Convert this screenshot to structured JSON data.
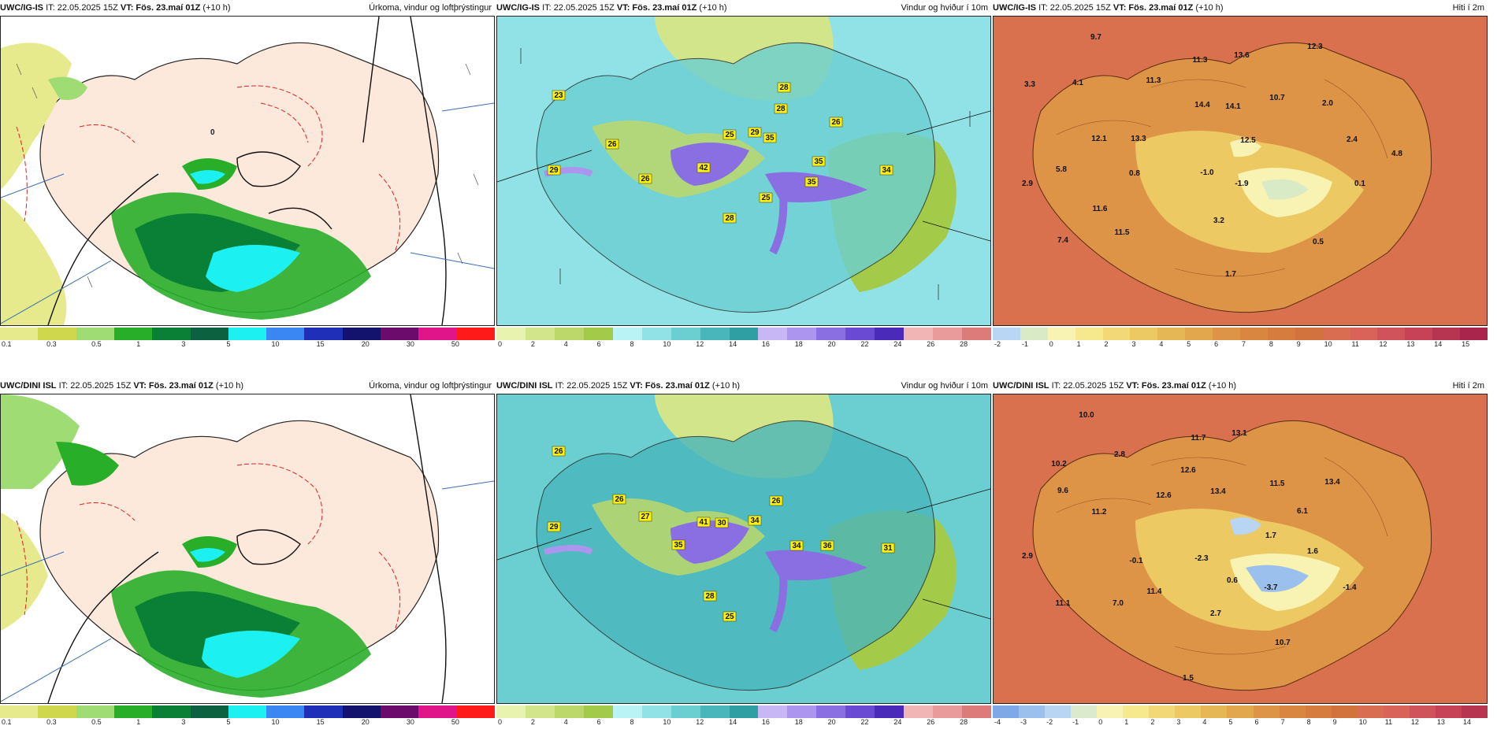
{
  "row1": {
    "panels": [
      {
        "model": "UWC/IG-IS",
        "it": "IT: 22.05.2025 15Z",
        "vt": "VT: Fös. 23.maí 01Z",
        "lead": "(+10 h)",
        "title": "Úrkoma, vindur og loftþrýstingur",
        "ticks": [
          "0.1",
          "0.3",
          "0.5",
          "1",
          "3",
          "5",
          "10",
          "15",
          "20",
          "30",
          "50"
        ],
        "colors": [
          "#d8e36a",
          "#bfd14a",
          "#a6e57a",
          "#2bb62e",
          "#0b8a30",
          "#0b6a3c",
          "#19f0f0",
          "#3b8cf0",
          "#2a3ed0",
          "#1e1ea0",
          "#7a0a7a",
          "#e01a8c",
          "#ff1a1a"
        ]
      },
      {
        "model": "UWC/IG-IS",
        "it": "IT: 22.05.2025 15Z",
        "vt": "VT: Fös. 23.maí 01Z",
        "lead": "(+10 h)",
        "title": "Vindur og hviður í 10m",
        "ticks": [
          "0",
          "2",
          "4",
          "6",
          "8",
          "10",
          "12",
          "14",
          "16",
          "18",
          "20",
          "22",
          "24",
          "26",
          "28"
        ],
        "labels": [
          "23",
          "28",
          "26",
          "29",
          "28",
          "26",
          "29",
          "42",
          "25",
          "35",
          "35",
          "35",
          "34",
          "26",
          "25",
          "28"
        ]
      },
      {
        "model": "UWC/IG-IS",
        "it": "IT: 22.05.2025 15Z",
        "vt": "VT: Fös. 23.maí 01Z",
        "lead": "(+10 h)",
        "title": "Hiti í 2m",
        "ticks": [
          "-2",
          "-1",
          "0",
          "1",
          "2",
          "3",
          "4",
          "5",
          "6",
          "7",
          "8",
          "9",
          "10",
          "11",
          "12",
          "13",
          "14",
          "15"
        ],
        "labels": [
          "9.7",
          "3.3",
          "4.1",
          "11.3",
          "11.3",
          "13.6",
          "12.3",
          "10.7",
          "2.0",
          "14.4",
          "14.1",
          "12.1",
          "13.3",
          "12.5",
          "2.4",
          "4.8",
          "5.8",
          "2.9",
          "0.8",
          "-1.0",
          "-1.9",
          "0.1",
          "11.6",
          "7.4",
          "11.5",
          "3.2",
          "0.5",
          "1.7"
        ]
      }
    ]
  },
  "row2": {
    "panels": [
      {
        "model": "UWC/DINI ISL",
        "it": "IT: 22.05.2025 15Z",
        "vt": "VT: Fös. 23.maí 01Z",
        "lead": "(+10 h)",
        "title": "Úrkoma, vindur og loftþrýstingur",
        "ticks": [
          "0.1",
          "0.3",
          "0.5",
          "1",
          "3",
          "5",
          "10",
          "15",
          "20",
          "30",
          "50"
        ]
      },
      {
        "model": "UWC/DINI ISL",
        "it": "IT: 22.05.2025 15Z",
        "vt": "VT: Fös. 23.maí 01Z",
        "lead": "(+10 h)",
        "title": "Vindur og hviður í 10m",
        "ticks": [
          "0",
          "2",
          "4",
          "6",
          "8",
          "10",
          "12",
          "14",
          "16",
          "18",
          "20",
          "22",
          "24",
          "26",
          "28"
        ],
        "labels": [
          "26",
          "26",
          "26",
          "29",
          "27",
          "41",
          "30",
          "34",
          "35",
          "34",
          "36",
          "31",
          "28",
          "25"
        ]
      },
      {
        "model": "UWC/DINI ISL",
        "it": "IT: 22.05.2025 15Z",
        "vt": "VT: Fös. 23.maí 01Z",
        "lead": "(+10 h)",
        "title": "Hiti í 2m",
        "ticks": [
          "-4",
          "-3",
          "-2",
          "-1",
          "0",
          "1",
          "2",
          "3",
          "4",
          "5",
          "6",
          "7",
          "8",
          "9",
          "10",
          "11",
          "12",
          "13",
          "14"
        ],
        "labels": [
          "10.0",
          "10.2",
          "2.8",
          "9.6",
          "11.7",
          "13.1",
          "12.6",
          "11.5",
          "13.4",
          "12.6",
          "13.4",
          "6.1",
          "11.2",
          "1.7",
          "2.9",
          "-0.1",
          "-2.3",
          "1.6",
          "-3.7",
          "0.6",
          "-1.4",
          "11.1",
          "7.0",
          "11.4",
          "2.7",
          "10.7",
          "1.5"
        ]
      }
    ]
  },
  "colors": {
    "precip": [
      "#e6ea8c",
      "#cfd84c",
      "#9fdc74",
      "#29ae2a",
      "#0a7f36",
      "#0c6240",
      "#1cf0f0",
      "#3a86f2",
      "#1f2fb8",
      "#13136e",
      "#6d0b6d",
      "#e0158a",
      "#ff1a1a"
    ],
    "wind": [
      "#e8f3b0",
      "#d3e58a",
      "#bcd86a",
      "#a4ca4a",
      "#b9f3f5",
      "#91e2e6",
      "#6bcfd2",
      "#49b6bb",
      "#2f9fa3",
      "#c7b7f5",
      "#ab95ee",
      "#8a6fe2",
      "#6a4ad3",
      "#4a2ab8",
      "#f2b5b5",
      "#e99b9b",
      "#dd7b7b"
    ],
    "temp1": [
      "#b9d6f4",
      "#d9eac6",
      "#f8f3b2",
      "#f6e88c",
      "#f2d877",
      "#ecc963",
      "#e6b855",
      "#e2a64c",
      "#de9446",
      "#d98740",
      "#d67c3e",
      "#d2733d",
      "#d86d52",
      "#d96358",
      "#d0525a",
      "#c74256",
      "#b73551",
      "#a9254b"
    ],
    "temp2": [
      "#7fa9e6",
      "#9cc0ed",
      "#b8d6f4",
      "#dbe9cc",
      "#f8f3b2",
      "#f6e88c",
      "#f2d877",
      "#ecc963",
      "#e6b855",
      "#e2a64c",
      "#de9446",
      "#d98740",
      "#d67c3e",
      "#d2733d",
      "#d86d52",
      "#d96358",
      "#d0525a",
      "#c74256",
      "#b73551"
    ]
  }
}
